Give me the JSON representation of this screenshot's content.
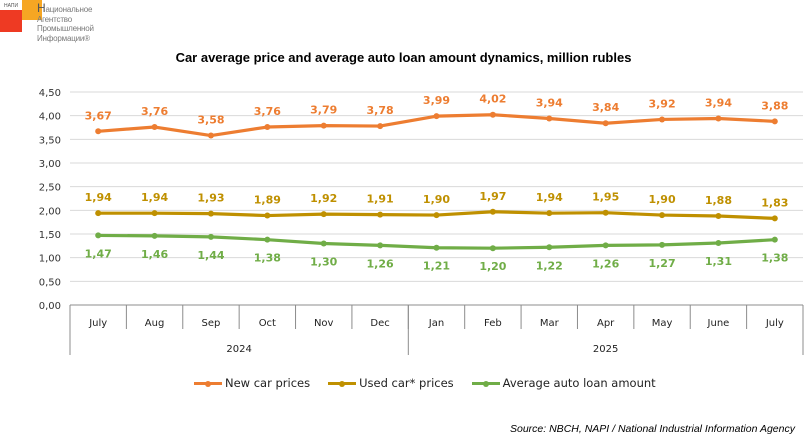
{
  "logo": {
    "abbr": "НАПИ",
    "line1_initial": "Н",
    "line1_rest": "ациональное",
    "line2": "Агентство",
    "line3": "Промышленной",
    "line4": "Информации®"
  },
  "source": "Source: NBCH, NAPI / National Industrial Information Agency",
  "chart_data": {
    "type": "line",
    "title": "Car average price and average auto loan amount dynamics, million rubles",
    "xlabel": "",
    "ylabel": "",
    "ylim": [
      0,
      4.5
    ],
    "yticks": [
      "0,00",
      "0,50",
      "1,00",
      "1,50",
      "2,00",
      "2,50",
      "3,00",
      "3,50",
      "4,00",
      "4,50"
    ],
    "ytick_values": [
      0,
      0.5,
      1,
      1.5,
      2,
      2.5,
      3,
      3.5,
      4,
      4.5
    ],
    "grid": true,
    "legend_position": "bottom",
    "categories": [
      "July",
      "Aug",
      "Sep",
      "Oct",
      "Nov",
      "Dec",
      "Jan",
      "Feb",
      "Mar",
      "Apr",
      "May",
      "June",
      "July"
    ],
    "groups": [
      {
        "label": "2024",
        "count": 6
      },
      {
        "label": "2025",
        "count": 7
      }
    ],
    "series": [
      {
        "name": "New car prices",
        "color": "#ed7d31",
        "label_position": "above",
        "values": [
          3.67,
          3.76,
          3.58,
          3.76,
          3.79,
          3.78,
          3.99,
          4.02,
          3.94,
          3.84,
          3.92,
          3.94,
          3.88
        ],
        "labels": [
          "3,67",
          "3,76",
          "3,58",
          "3,76",
          "3,79",
          "3,78",
          "3,99",
          "4,02",
          "3,94",
          "3,84",
          "3,92",
          "3,94",
          "3,88"
        ]
      },
      {
        "name": "Used car* prices",
        "color": "#bf9000",
        "label_position": "above",
        "values": [
          1.94,
          1.94,
          1.93,
          1.89,
          1.92,
          1.91,
          1.9,
          1.97,
          1.94,
          1.95,
          1.9,
          1.88,
          1.83
        ],
        "labels": [
          "1,94",
          "1,94",
          "1,93",
          "1,89",
          "1,92",
          "1,91",
          "1,90",
          "1,97",
          "1,94",
          "1,95",
          "1,90",
          "1,88",
          "1,83"
        ]
      },
      {
        "name": "Average auto loan amount",
        "color": "#70ad47",
        "label_position": "below",
        "values": [
          1.47,
          1.46,
          1.44,
          1.38,
          1.3,
          1.26,
          1.21,
          1.2,
          1.22,
          1.26,
          1.27,
          1.31,
          1.38
        ],
        "labels": [
          "1,47",
          "1,46",
          "1,44",
          "1,38",
          "1,30",
          "1,26",
          "1,21",
          "1,20",
          "1,22",
          "1,26",
          "1,27",
          "1,31",
          "1,38"
        ]
      }
    ]
  }
}
